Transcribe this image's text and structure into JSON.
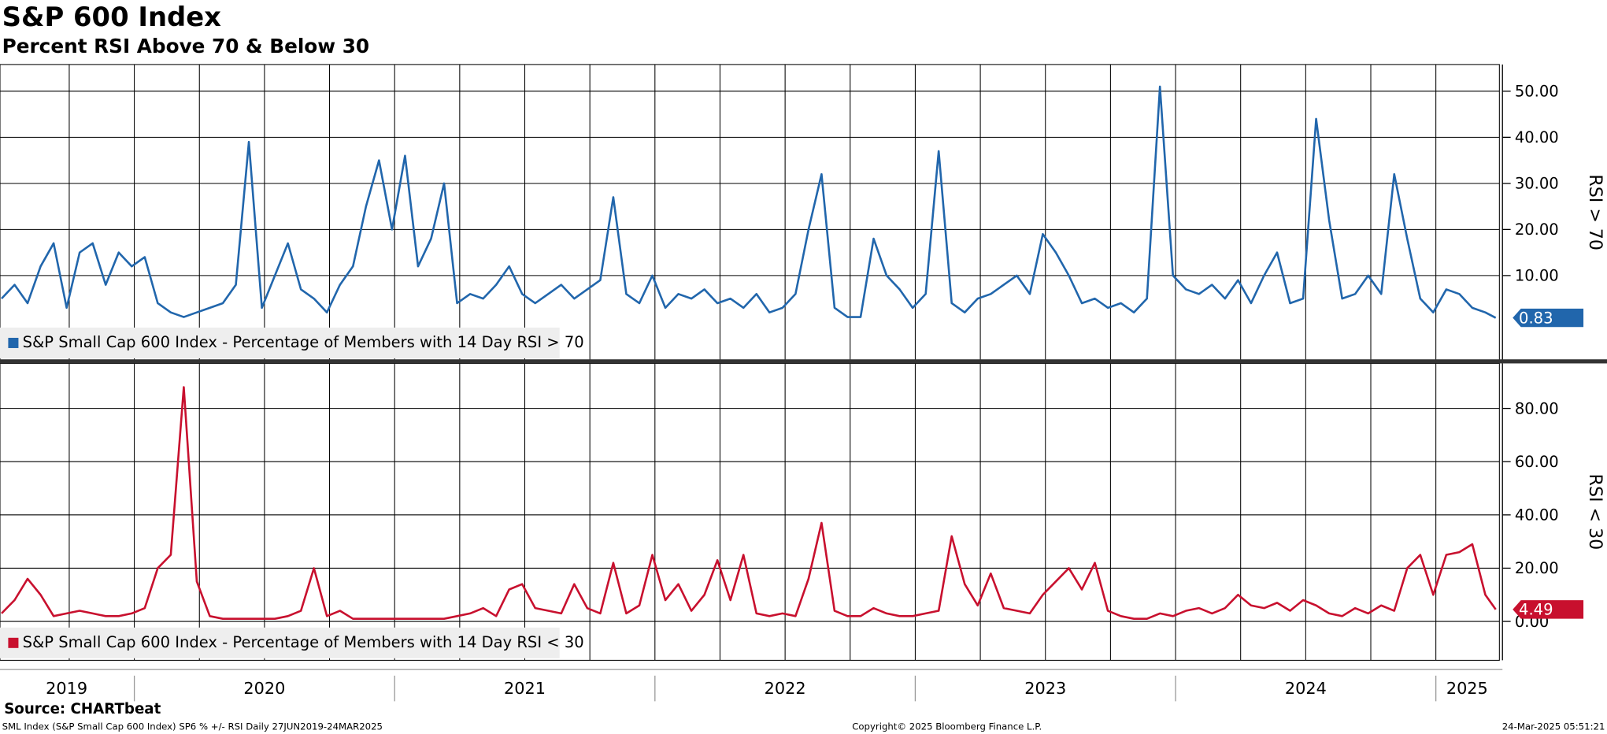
{
  "chart_data": [
    {
      "type": "line",
      "title": "S&P 600 Index",
      "subtitle": "Percent RSI Above 70 & Below 30",
      "y_label": "RSI > 70",
      "x": [
        2019.49,
        2019.54,
        2019.59,
        2019.64,
        2019.69,
        2019.74,
        2019.79,
        2019.84,
        2019.89,
        2019.94,
        2019.99,
        2020.04,
        2020.09,
        2020.14,
        2020.19,
        2020.24,
        2020.29,
        2020.34,
        2020.39,
        2020.44,
        2020.49,
        2020.54,
        2020.59,
        2020.64,
        2020.69,
        2020.74,
        2020.79,
        2020.84,
        2020.89,
        2020.94,
        2020.99,
        2021.04,
        2021.09,
        2021.14,
        2021.19,
        2021.24,
        2021.29,
        2021.34,
        2021.39,
        2021.44,
        2021.49,
        2021.54,
        2021.59,
        2021.64,
        2021.69,
        2021.74,
        2021.79,
        2021.84,
        2021.89,
        2021.94,
        2021.99,
        2022.04,
        2022.09,
        2022.14,
        2022.19,
        2022.24,
        2022.29,
        2022.34,
        2022.39,
        2022.44,
        2022.49,
        2022.54,
        2022.59,
        2022.64,
        2022.69,
        2022.74,
        2022.79,
        2022.84,
        2022.89,
        2022.94,
        2022.99,
        2023.04,
        2023.09,
        2023.14,
        2023.19,
        2023.24,
        2023.29,
        2023.34,
        2023.39,
        2023.44,
        2023.49,
        2023.54,
        2023.59,
        2023.64,
        2023.69,
        2023.74,
        2023.79,
        2023.84,
        2023.89,
        2023.94,
        2023.99,
        2024.04,
        2024.09,
        2024.14,
        2024.19,
        2024.24,
        2024.29,
        2024.34,
        2024.39,
        2024.44,
        2024.49,
        2024.54,
        2024.59,
        2024.64,
        2024.69,
        2024.74,
        2024.79,
        2024.84,
        2024.89,
        2024.94,
        2024.99,
        2025.04,
        2025.09,
        2025.14,
        2025.19,
        2025.23
      ],
      "series": [
        {
          "name": "S&P Small Cap 600 Index - Percentage of Members with 14 Day RSI > 70",
          "color": "#2166ac",
          "values": [
            5,
            8,
            4,
            12,
            17,
            3,
            15,
            17,
            8,
            15,
            12,
            14,
            4,
            2,
            1,
            2,
            3,
            4,
            8,
            39,
            3,
            10,
            17,
            7,
            5,
            2,
            8,
            12,
            25,
            35,
            20,
            36,
            12,
            18,
            30,
            4,
            6,
            5,
            8,
            12,
            6,
            4,
            6,
            8,
            5,
            7,
            9,
            27,
            6,
            4,
            10,
            3,
            6,
            5,
            7,
            4,
            5,
            3,
            6,
            2,
            3,
            6,
            20,
            32,
            3,
            1,
            1,
            18,
            10,
            7,
            3,
            6,
            37,
            4,
            2,
            5,
            6,
            8,
            10,
            6,
            19,
            15,
            10,
            4,
            5,
            3,
            4,
            2,
            5,
            51,
            10,
            7,
            6,
            8,
            5,
            9,
            4,
            10,
            15,
            4,
            5,
            44,
            22,
            5,
            6,
            10,
            6,
            32,
            18,
            5,
            2,
            7,
            6,
            3,
            2,
            0.83
          ]
        }
      ],
      "xlim": [
        2019.484,
        2025.244
      ],
      "ylim": [
        -8.4,
        55.8
      ],
      "yticks": [
        {
          "value": 10,
          "label": "10.00"
        },
        {
          "value": 20,
          "label": "20.00"
        },
        {
          "value": 30,
          "label": "30.00"
        },
        {
          "value": 40,
          "label": "40.00"
        },
        {
          "value": 50,
          "label": "50.00"
        }
      ],
      "xgrid": [
        2019.75,
        2020,
        2020.25,
        2020.5,
        2020.75,
        2021,
        2021.25,
        2021.5,
        2021.75,
        2022,
        2022.25,
        2022.5,
        2022.75,
        2023,
        2023.25,
        2023.5,
        2023.75,
        2024,
        2024.25,
        2024.5,
        2024.75,
        2025
      ],
      "grid": true
    },
    {
      "type": "line",
      "y_label": "RSI < 30",
      "x": [
        2019.49,
        2019.54,
        2019.59,
        2019.64,
        2019.69,
        2019.74,
        2019.79,
        2019.84,
        2019.89,
        2019.94,
        2019.99,
        2020.04,
        2020.09,
        2020.14,
        2020.19,
        2020.24,
        2020.29,
        2020.34,
        2020.39,
        2020.44,
        2020.49,
        2020.54,
        2020.59,
        2020.64,
        2020.69,
        2020.74,
        2020.79,
        2020.84,
        2020.89,
        2020.94,
        2020.99,
        2021.04,
        2021.09,
        2021.14,
        2021.19,
        2021.24,
        2021.29,
        2021.34,
        2021.39,
        2021.44,
        2021.49,
        2021.54,
        2021.59,
        2021.64,
        2021.69,
        2021.74,
        2021.79,
        2021.84,
        2021.89,
        2021.94,
        2021.99,
        2022.04,
        2022.09,
        2022.14,
        2022.19,
        2022.24,
        2022.29,
        2022.34,
        2022.39,
        2022.44,
        2022.49,
        2022.54,
        2022.59,
        2022.64,
        2022.69,
        2022.74,
        2022.79,
        2022.84,
        2022.89,
        2022.94,
        2022.99,
        2023.04,
        2023.09,
        2023.14,
        2023.19,
        2023.24,
        2023.29,
        2023.34,
        2023.39,
        2023.44,
        2023.49,
        2023.54,
        2023.59,
        2023.64,
        2023.69,
        2023.74,
        2023.79,
        2023.84,
        2023.89,
        2023.94,
        2023.99,
        2024.04,
        2024.09,
        2024.14,
        2024.19,
        2024.24,
        2024.29,
        2024.34,
        2024.39,
        2024.44,
        2024.49,
        2024.54,
        2024.59,
        2024.64,
        2024.69,
        2024.74,
        2024.79,
        2024.84,
        2024.89,
        2024.94,
        2024.99,
        2025.04,
        2025.09,
        2025.14,
        2025.19,
        2025.23
      ],
      "series": [
        {
          "name": "S&P Small Cap 600 Index - Percentage of Members with 14 Day RSI < 30",
          "color": "#c8102e",
          "values": [
            3,
            8,
            16,
            10,
            2,
            3,
            4,
            3,
            2,
            2,
            3,
            5,
            20,
            25,
            88,
            15,
            2,
            1,
            1,
            1,
            1,
            1,
            2,
            4,
            20,
            2,
            4,
            1,
            1,
            1,
            1,
            1,
            1,
            1,
            1,
            2,
            3,
            5,
            2,
            12,
            14,
            5,
            4,
            3,
            14,
            5,
            3,
            22,
            3,
            6,
            25,
            8,
            14,
            4,
            10,
            23,
            8,
            25,
            3,
            2,
            3,
            2,
            16,
            37,
            4,
            2,
            2,
            5,
            3,
            2,
            2,
            3,
            4,
            32,
            14,
            6,
            18,
            5,
            4,
            3,
            10,
            15,
            20,
            12,
            22,
            4,
            2,
            1,
            1,
            3,
            2,
            4,
            5,
            3,
            5,
            10,
            6,
            5,
            7,
            4,
            8,
            6,
            3,
            2,
            5,
            3,
            6,
            4,
            20,
            25,
            10,
            25,
            26,
            29,
            10,
            4.49
          ]
        }
      ],
      "xlim": [
        2019.484,
        2025.244
      ],
      "ylim": [
        -14.6,
        96.9
      ],
      "yticks": [
        {
          "value": 0,
          "label": "0.00"
        },
        {
          "value": 20,
          "label": "20.00"
        },
        {
          "value": 40,
          "label": "40.00"
        },
        {
          "value": 60,
          "label": "60.00"
        },
        {
          "value": 80,
          "label": "80.00"
        }
      ],
      "xgrid": [
        2019.75,
        2020,
        2020.25,
        2020.5,
        2020.75,
        2021,
        2021.25,
        2021.5,
        2021.75,
        2022,
        2022.25,
        2022.5,
        2022.75,
        2023,
        2023.25,
        2023.5,
        2023.75,
        2024,
        2024.25,
        2024.5,
        2024.75,
        2025
      ],
      "xticks": [
        {
          "value": 2019.74,
          "label": "2019"
        },
        {
          "value": 2020.5,
          "label": "2020"
        },
        {
          "value": 2021.5,
          "label": "2021"
        },
        {
          "value": 2022.5,
          "label": "2022"
        },
        {
          "value": 2023.5,
          "label": "2023"
        },
        {
          "value": 2024.5,
          "label": "2024"
        },
        {
          "value": 2025.12,
          "label": "2025"
        }
      ],
      "year_boundaries": [
        2020,
        2021,
        2022,
        2023,
        2024,
        2025
      ],
      "grid": true
    }
  ],
  "footer": {
    "source": "Source: CHARTbeat",
    "description": "SML Index (S&P Small Cap 600 Index) SP6 % +/- RSI  Daily 27JUN2019-24MAR2025",
    "copyright": "Copyright© 2025 Bloomberg Finance L.P.",
    "timestamp": "24-Mar-2025 05:51:21"
  }
}
